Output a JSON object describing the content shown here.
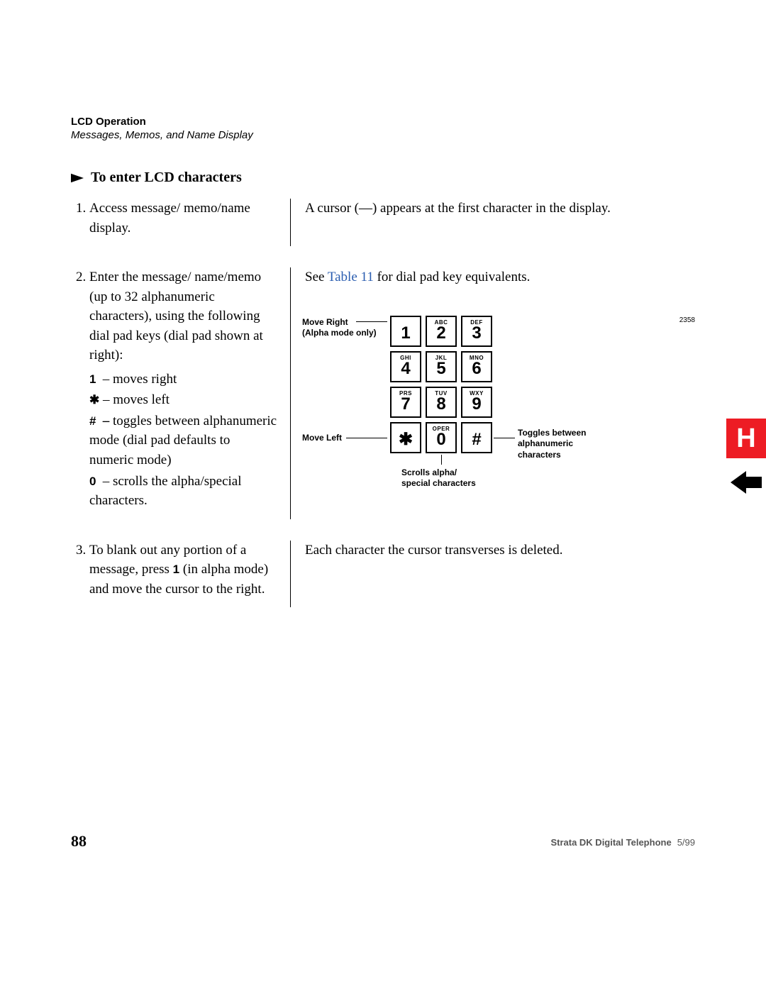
{
  "header": {
    "section": "LCD Operation",
    "subsection": "Messages, Memos, and Name Display"
  },
  "section_title": "To enter LCD characters",
  "steps": {
    "s1": {
      "left": "Access message/ memo/name display.",
      "right": "A cursor (—) appears at the first character in the display."
    },
    "s2": {
      "left_intro": "Enter the message/ name/memo (up to 32 alphanumeric characters), using the following dial pad keys (dial pad shown at right):",
      "k1": " – moves right",
      "k2": " – moves left",
      "k3_prefix": " – ",
      "k3_rest": "toggles between alphanumeric mode (dial pad defaults to numeric mode)",
      "k4": " – scrolls the alpha/special characters.",
      "glyph1": "1",
      "glyph_star": "✱",
      "glyph_hash": "#",
      "glyph0": "0",
      "right_prefix": "See ",
      "right_link": "Table 11",
      "right_suffix": " for dial pad key equivalents."
    },
    "s3": {
      "left_a": "To blank out any portion of a message, press ",
      "left_key": "1",
      "left_b": " (in alpha mode) and move the cursor to the right.",
      "right": "Each character the cursor transverses is deleted."
    }
  },
  "diagram": {
    "ref": "2358",
    "keys": [
      {
        "tiny": "",
        "big": "1"
      },
      {
        "tiny": "ABC",
        "big": "2"
      },
      {
        "tiny": "DEF",
        "big": "3"
      },
      {
        "tiny": "GHI",
        "big": "4"
      },
      {
        "tiny": "JKL",
        "big": "5"
      },
      {
        "tiny": "MNO",
        "big": "6"
      },
      {
        "tiny": "PRS",
        "big": "7"
      },
      {
        "tiny": "TUV",
        "big": "8"
      },
      {
        "tiny": "WXY",
        "big": "9"
      },
      {
        "tiny": "",
        "big": "✱"
      },
      {
        "tiny": "OPER",
        "big": "0"
      },
      {
        "tiny": "",
        "big": "#"
      }
    ],
    "callouts": {
      "move_right_l1": "Move Right",
      "move_right_l2": "(Alpha mode only)",
      "move_left": "Move Left",
      "scrolls_l1": "Scrolls alpha/",
      "scrolls_l2": "special characters",
      "toggles_l1": "Toggles between",
      "toggles_l2": "alphanumeric",
      "toggles_l3": "characters"
    }
  },
  "footer": {
    "page": "88",
    "title": "Strata DK Digital Telephone",
    "date": "5/99"
  },
  "side_marker": "H"
}
